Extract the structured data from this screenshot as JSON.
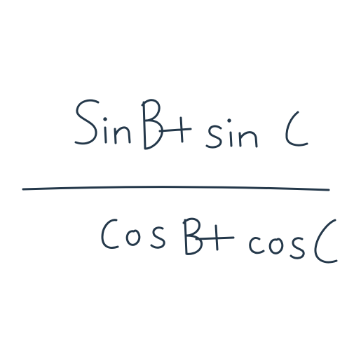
{
  "expression": {
    "numerator": "SinB+ sin C",
    "denominator": "CosB+ cos C"
  },
  "colors": {
    "background": "#ffffff",
    "ink": "#24384a"
  }
}
